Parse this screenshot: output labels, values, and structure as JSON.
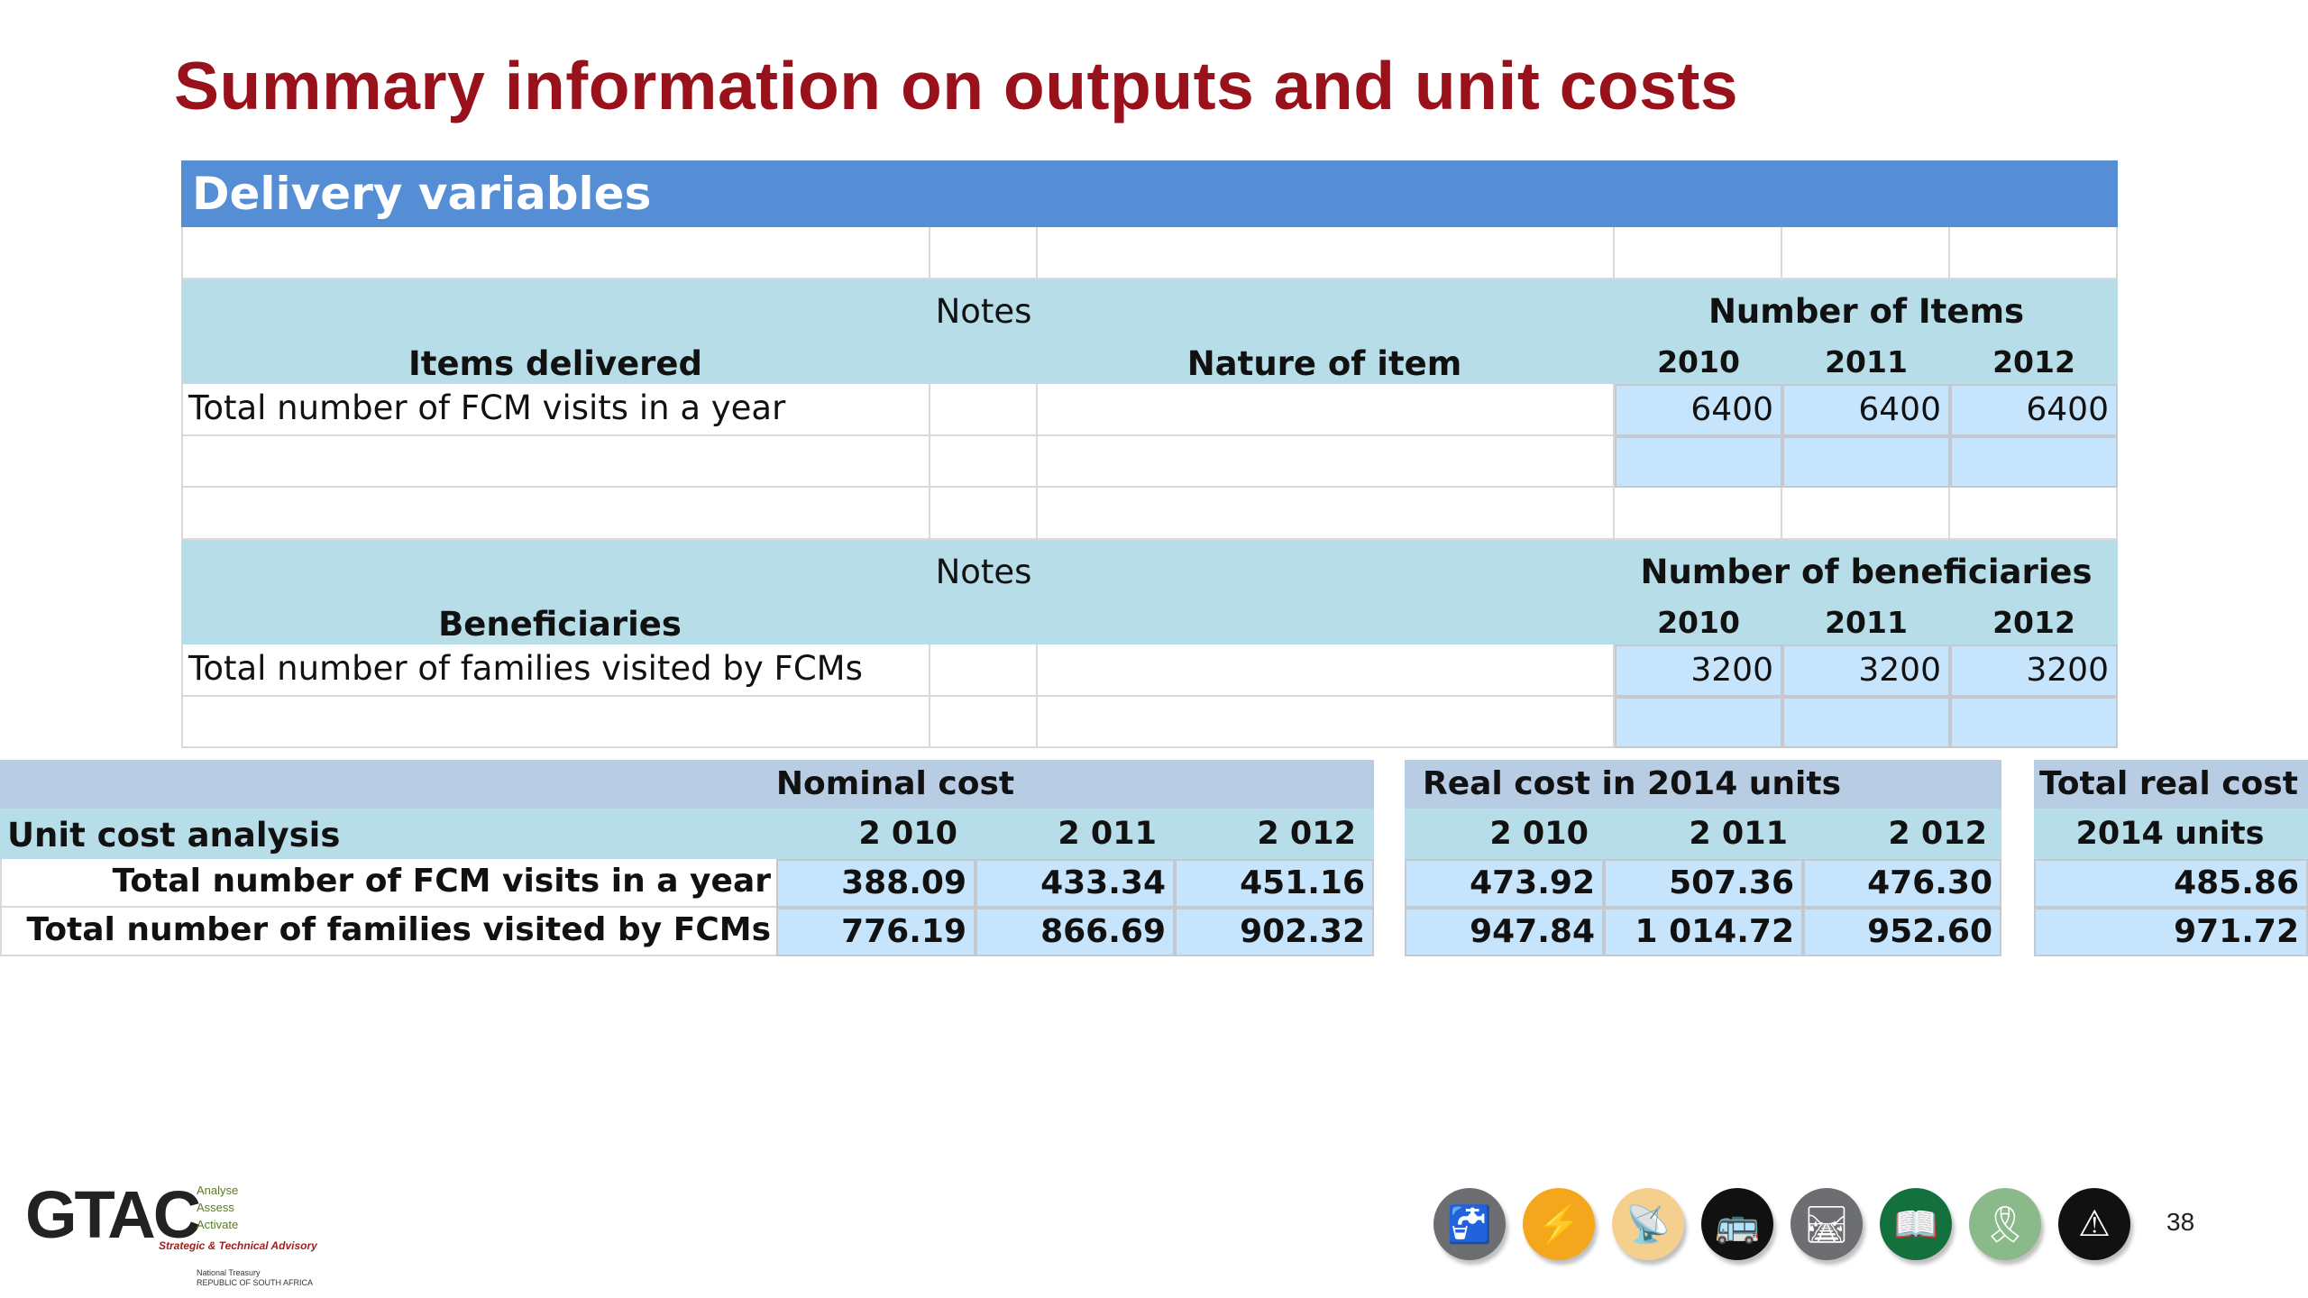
{
  "title": "Summary information on outputs and unit costs",
  "delivery": {
    "header": "Delivery variables",
    "items_section": {
      "notes_label": "Notes",
      "group_label": "Number of Items",
      "col_items": "Items delivered",
      "col_nature": "Nature of item",
      "years": [
        "2010",
        "2011",
        "2012"
      ],
      "row_label": "Total number of FCM visits in a year",
      "values": [
        "6400",
        "6400",
        "6400"
      ]
    },
    "beneficiaries_section": {
      "notes_label": "Notes",
      "group_label": "Number of beneficiaries",
      "col_beneficiaries": "Beneficiaries",
      "years": [
        "2010",
        "2011",
        "2012"
      ],
      "row_label": "Total number of families visited by FCMs",
      "values": [
        "3200",
        "3200",
        "3200"
      ]
    }
  },
  "unit_cost": {
    "title": "Unit cost analysis",
    "nominal_label": "Nominal cost",
    "real_label": "Real cost in 2014 units",
    "total_label_1": "Total real cost in",
    "total_label_2": "2014 units",
    "nominal_years": [
      "2 010",
      "2 011",
      "2 012"
    ],
    "real_years": [
      "2 010",
      "2 011",
      "2 012"
    ],
    "rows": [
      {
        "label": "Total number of FCM visits in a year",
        "nominal": [
          "388.09",
          "433.34",
          "451.16"
        ],
        "real": [
          "473.92",
          "507.36",
          "476.30"
        ],
        "total": "485.86"
      },
      {
        "label": "Total number of families visited by FCMs",
        "nominal": [
          "776.19",
          "866.69",
          "902.32"
        ],
        "real": [
          "947.84",
          "1 014.72",
          "952.60"
        ],
        "total": "971.72"
      }
    ]
  },
  "footer": {
    "logo_text": "GTAC",
    "logo_lines": [
      "Analyse",
      "Assess",
      "Activate"
    ],
    "logo_tagline": "Strategic & Technical Advisory",
    "logo_nt_1": "National Treasury",
    "logo_nt_2": "REPUBLIC OF SOUTH AFRICA",
    "page_number": "38",
    "icons": [
      {
        "name": "water-tap-icon",
        "color": "#6d6e71",
        "glyph": "🚰"
      },
      {
        "name": "electricity-icon",
        "color": "#f4a71c",
        "glyph": "⚡"
      },
      {
        "name": "telecom-icon",
        "color": "#f5cf8e",
        "glyph": "📡"
      },
      {
        "name": "transport-bus-icon",
        "color": "#111111",
        "glyph": "🚌"
      },
      {
        "name": "roads-icon",
        "color": "#6d6e71",
        "glyph": "🛤"
      },
      {
        "name": "education-book-icon",
        "color": "#14703c",
        "glyph": "📖"
      },
      {
        "name": "health-ribbon-icon",
        "color": "#8ab98a",
        "glyph": "🎗"
      },
      {
        "name": "safety-warning-icon",
        "color": "#111111",
        "glyph": "⚠"
      }
    ]
  }
}
